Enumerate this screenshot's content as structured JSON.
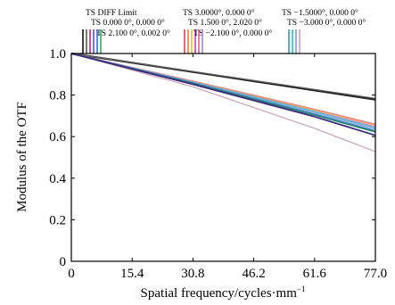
{
  "chart_data": {
    "type": "line",
    "title": "",
    "xlabel": "Spatial frequency/cycles·mm",
    "xlabel_superscript": "−1",
    "ylabel": "Modulus of the OTF",
    "xlim": [
      0,
      77.0
    ],
    "ylim": [
      0,
      1.0
    ],
    "xticks": [
      0,
      15.4,
      30.8,
      46.2,
      61.6,
      77.0
    ],
    "xtick_labels": [
      "0",
      "15.4",
      "30.8",
      "46.2",
      "61.6",
      "77.0"
    ],
    "yticks": [
      0,
      0.2,
      0.4,
      0.6,
      0.8,
      1.0
    ],
    "ytick_labels": [
      "0",
      "0.2",
      "0.4",
      "0.6",
      "0.8",
      "1.0"
    ],
    "grid": false,
    "legend_position": "top",
    "legend": [
      {
        "label": "TS DIFF Limit",
        "colors": [
          "#111111",
          "#555555"
        ]
      },
      {
        "label": "TS  0.000 0°, 0.000 0°",
        "colors": [
          "#c02080",
          "#5a50c0"
        ]
      },
      {
        "label": "TS  2.100 0°, 0.002 0°",
        "colors": [
          "#3070d0",
          "#30b060"
        ]
      },
      {
        "label": "TS 3.0000°, 0.000 0°",
        "colors": [
          "#e04060",
          "#f08030"
        ]
      },
      {
        "label": "TS  1.500 0°, 2.020 0°",
        "colors": [
          "#e8c020",
          "#c040a0"
        ]
      },
      {
        "label": "TS  −2.100 0°, 0.000 0°",
        "colors": [
          "#d060a0",
          "#b080d0"
        ]
      },
      {
        "label": "TS −1.5000°, 0.000 0°",
        "colors": [
          "#20a0d0",
          "#30c0c0"
        ]
      },
      {
        "label": "TS  −3.000 0°, 0.000 0°",
        "colors": [
          "#9090e0",
          "#c0a0e0"
        ]
      }
    ],
    "series": [
      {
        "name": "TS DIFF Limit",
        "color": "#222222",
        "width": 2.2,
        "x": [
          0,
          77
        ],
        "y": [
          1.0,
          0.778
        ]
      },
      {
        "color": "#666666",
        "width": 1.2,
        "x": [
          0,
          77
        ],
        "y": [
          1.0,
          0.784
        ]
      },
      {
        "color": "#c8a0b8",
        "width": 1.2,
        "x": [
          0,
          30.8,
          61.6,
          77
        ],
        "y": [
          1.0,
          0.84,
          0.64,
          0.528
        ]
      },
      {
        "color": "#e080a0",
        "width": 1.2,
        "x": [
          0,
          30.8,
          61.6,
          77
        ],
        "y": [
          1.0,
          0.868,
          0.732,
          0.66
        ]
      },
      {
        "color": "#f0a040",
        "width": 1.2,
        "x": [
          0,
          30.8,
          61.6,
          77
        ],
        "y": [
          1.0,
          0.866,
          0.728,
          0.655
        ]
      },
      {
        "color": "#d080d0",
        "width": 1.2,
        "x": [
          0,
          30.8,
          61.6,
          77
        ],
        "y": [
          1.0,
          0.864,
          0.722,
          0.648
        ]
      },
      {
        "color": "#40c0d0",
        "width": 1.2,
        "x": [
          0,
          30.8,
          61.6,
          77
        ],
        "y": [
          1.0,
          0.862,
          0.72,
          0.642
        ]
      },
      {
        "color": "#8aa0d8",
        "width": 1.2,
        "x": [
          0,
          30.8,
          61.6,
          77
        ],
        "y": [
          1.0,
          0.86,
          0.714,
          0.636
        ]
      },
      {
        "color": "#3a78d0",
        "width": 1.4,
        "x": [
          0,
          30.8,
          61.6,
          77
        ],
        "y": [
          1.0,
          0.858,
          0.708,
          0.628
        ]
      },
      {
        "color": "#1f8a60",
        "width": 1.4,
        "x": [
          0,
          30.8,
          61.6,
          77
        ],
        "y": [
          1.0,
          0.856,
          0.704,
          0.622
        ]
      },
      {
        "color": "#3a2a80",
        "width": 1.8,
        "x": [
          0,
          30.8,
          61.6,
          77
        ],
        "y": [
          1.0,
          0.852,
          0.696,
          0.606
        ]
      }
    ]
  }
}
